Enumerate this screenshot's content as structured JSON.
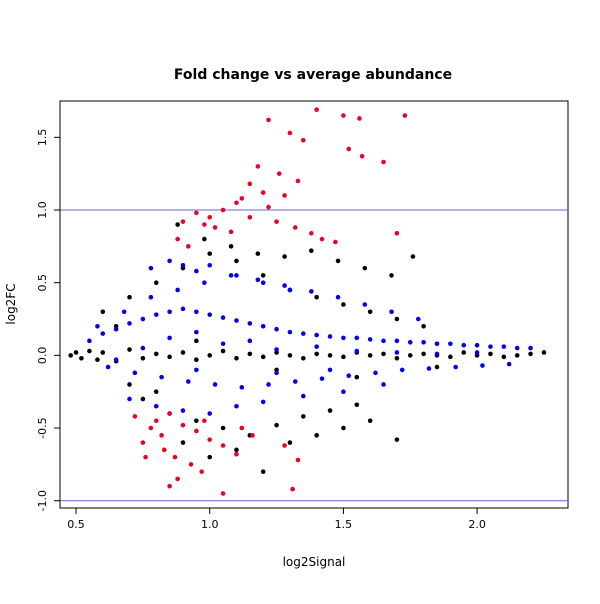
{
  "chart_data": {
    "type": "scatter",
    "title": "Fold change vs average abundance",
    "xlabel": "log2Signal",
    "ylabel": "log2FC",
    "xlim": [
      0.44,
      2.34
    ],
    "ylim": [
      -1.05,
      1.75
    ],
    "x_ticks": [
      "0.5",
      "1.0",
      "1.5",
      "2.0"
    ],
    "y_ticks": [
      "-1.0",
      "-0.5",
      "0.0",
      "0.5",
      "1.0",
      "1.5"
    ],
    "x_tick_values": [
      0.5,
      1.0,
      1.5,
      2.0
    ],
    "y_tick_values": [
      -1.0,
      -0.5,
      0.0,
      0.5,
      1.0,
      1.5
    ],
    "reference_lines": [
      {
        "axis": "y",
        "value": 1.0,
        "color": "#6666dd"
      },
      {
        "axis": "y",
        "value": -1.0,
        "color": "#6666dd"
      }
    ],
    "grid": false,
    "colors": {
      "not_significant": "#000000",
      "significant": "#0000ee",
      "large_change": "#ee0022"
    },
    "series": [
      {
        "color": "#ee0022",
        "x": [
          1.4,
          1.5,
          1.56,
          1.73,
          1.22,
          1.3,
          1.35,
          1.52,
          1.57,
          1.65,
          1.18,
          1.26,
          1.33,
          1.15,
          1.2,
          1.28,
          1.12,
          1.1,
          1.22,
          1.05,
          0.95,
          1.0,
          0.9,
          0.98,
          1.02,
          1.08,
          0.88,
          0.92,
          1.15,
          1.25,
          1.32,
          1.38,
          1.42,
          1.47,
          1.7,
          0.85,
          0.8,
          0.78,
          0.82,
          0.75,
          0.72,
          0.83,
          0.87,
          0.9,
          0.95,
          1.0,
          1.05,
          0.93,
          0.97,
          1.1,
          1.16,
          1.28,
          1.33,
          0.88,
          0.85,
          1.05,
          1.31,
          0.98,
          1.12,
          0.76
        ],
        "y": [
          1.69,
          1.65,
          1.63,
          1.65,
          1.62,
          1.53,
          1.48,
          1.42,
          1.37,
          1.33,
          1.3,
          1.25,
          1.2,
          1.18,
          1.12,
          1.1,
          1.08,
          1.05,
          1.02,
          1.0,
          0.98,
          0.95,
          0.92,
          0.9,
          0.88,
          0.85,
          0.8,
          0.75,
          0.95,
          0.92,
          0.88,
          0.84,
          0.8,
          0.78,
          0.84,
          -0.4,
          -0.45,
          -0.5,
          -0.55,
          -0.6,
          -0.42,
          -0.65,
          -0.7,
          -0.48,
          -0.52,
          -0.58,
          -0.62,
          -0.75,
          -0.8,
          -0.68,
          -0.55,
          -0.62,
          -0.72,
          -0.85,
          -0.9,
          -0.95,
          -0.92,
          -0.45,
          -0.5,
          -0.7
        ]
      },
      {
        "color": "#0000ee",
        "x": [
          0.55,
          0.6,
          0.65,
          0.7,
          0.75,
          0.8,
          0.85,
          0.9,
          0.95,
          1.0,
          1.05,
          1.1,
          1.15,
          1.2,
          1.25,
          1.3,
          1.35,
          1.4,
          1.45,
          1.5,
          1.55,
          1.6,
          1.65,
          1.7,
          1.75,
          1.8,
          1.85,
          1.9,
          1.95,
          2.0,
          2.05,
          2.1,
          2.15,
          2.2,
          0.62,
          0.72,
          0.82,
          0.92,
          1.02,
          1.12,
          1.22,
          1.32,
          1.42,
          1.52,
          1.62,
          1.72,
          1.82,
          1.92,
          2.02,
          2.12,
          0.58,
          0.68,
          0.78,
          0.88,
          0.98,
          1.08,
          1.18,
          1.28,
          1.38,
          1.48,
          1.58,
          1.68,
          1.78,
          0.78,
          0.85,
          0.9,
          0.95,
          1.0,
          1.1,
          1.2,
          1.3,
          0.7,
          0.8,
          0.9,
          1.0,
          1.1,
          1.2,
          1.35,
          1.5,
          1.65,
          0.75,
          0.85,
          0.95,
          1.05,
          1.15,
          1.25,
          1.4,
          1.55,
          1.7,
          1.85,
          2.0,
          0.65,
          0.95,
          1.25,
          1.45
        ],
        "y": [
          0.1,
          0.15,
          0.18,
          0.22,
          0.25,
          0.28,
          0.3,
          0.32,
          0.3,
          0.28,
          0.26,
          0.24,
          0.22,
          0.2,
          0.18,
          0.16,
          0.15,
          0.14,
          0.13,
          0.12,
          0.12,
          0.11,
          0.1,
          0.1,
          0.09,
          0.09,
          0.08,
          0.08,
          0.07,
          0.07,
          0.06,
          0.06,
          0.05,
          0.05,
          -0.08,
          -0.12,
          -0.15,
          -0.18,
          -0.2,
          -0.22,
          -0.2,
          -0.18,
          -0.16,
          -0.14,
          -0.12,
          -0.1,
          -0.09,
          -0.08,
          -0.07,
          -0.06,
          0.2,
          0.3,
          0.4,
          0.45,
          0.5,
          0.55,
          0.52,
          0.48,
          0.44,
          0.4,
          0.35,
          0.3,
          0.25,
          0.6,
          0.65,
          0.62,
          0.58,
          0.62,
          0.55,
          0.5,
          0.45,
          -0.3,
          -0.35,
          -0.38,
          -0.4,
          -0.35,
          -0.32,
          -0.28,
          -0.25,
          -0.2,
          0.05,
          0.12,
          0.16,
          0.08,
          0.1,
          0.04,
          0.06,
          0.03,
          0.02,
          0.01,
          0.02,
          -0.03,
          -0.1,
          -0.12,
          -0.1
        ]
      },
      {
        "color": "#000000",
        "x": [
          0.48,
          0.5,
          0.52,
          0.55,
          0.58,
          0.6,
          0.65,
          0.7,
          0.75,
          0.8,
          0.85,
          0.9,
          0.95,
          1.0,
          1.05,
          1.1,
          1.15,
          1.2,
          1.25,
          1.3,
          1.35,
          1.4,
          1.45,
          1.5,
          1.55,
          1.6,
          1.65,
          1.7,
          1.75,
          1.8,
          1.85,
          1.9,
          1.95,
          2.0,
          2.05,
          2.1,
          2.15,
          2.2,
          2.25,
          0.6,
          0.7,
          0.8,
          0.9,
          1.0,
          1.1,
          1.2,
          1.3,
          1.4,
          1.5,
          1.6,
          1.7,
          1.8,
          0.75,
          0.85,
          0.95,
          1.05,
          1.15,
          1.25,
          1.35,
          1.45,
          1.55,
          0.88,
          0.98,
          1.08,
          1.18,
          1.28,
          1.38,
          1.48,
          1.58,
          1.68,
          1.76,
          0.7,
          0.8,
          0.9,
          1.0,
          1.1,
          1.2,
          1.3,
          1.4,
          1.5,
          1.6,
          1.7,
          0.65,
          0.95,
          1.25,
          1.55,
          1.85
        ],
        "y": [
          0.0,
          0.02,
          -0.02,
          0.03,
          -0.03,
          0.02,
          -0.04,
          0.04,
          -0.02,
          0.01,
          -0.01,
          0.02,
          -0.03,
          0.0,
          0.03,
          -0.02,
          0.01,
          -0.01,
          0.02,
          0.0,
          -0.02,
          0.01,
          0.0,
          -0.01,
          0.02,
          0.0,
          0.01,
          -0.02,
          0.0,
          0.01,
          0.0,
          -0.01,
          0.02,
          0.0,
          0.01,
          -0.01,
          0.0,
          0.01,
          0.02,
          0.3,
          0.4,
          0.5,
          0.6,
          0.7,
          0.65,
          0.55,
          0.45,
          0.4,
          0.35,
          0.3,
          0.25,
          0.2,
          -0.3,
          -0.4,
          -0.45,
          -0.5,
          -0.55,
          -0.48,
          -0.42,
          -0.38,
          -0.34,
          0.9,
          0.8,
          0.75,
          0.7,
          0.68,
          0.72,
          0.65,
          0.6,
          0.55,
          0.68,
          -0.2,
          -0.25,
          -0.6,
          -0.7,
          -0.65,
          -0.8,
          -0.6,
          -0.55,
          -0.5,
          -0.45,
          -0.58,
          0.2,
          0.1,
          -0.1,
          -0.15,
          -0.08
        ]
      }
    ]
  }
}
